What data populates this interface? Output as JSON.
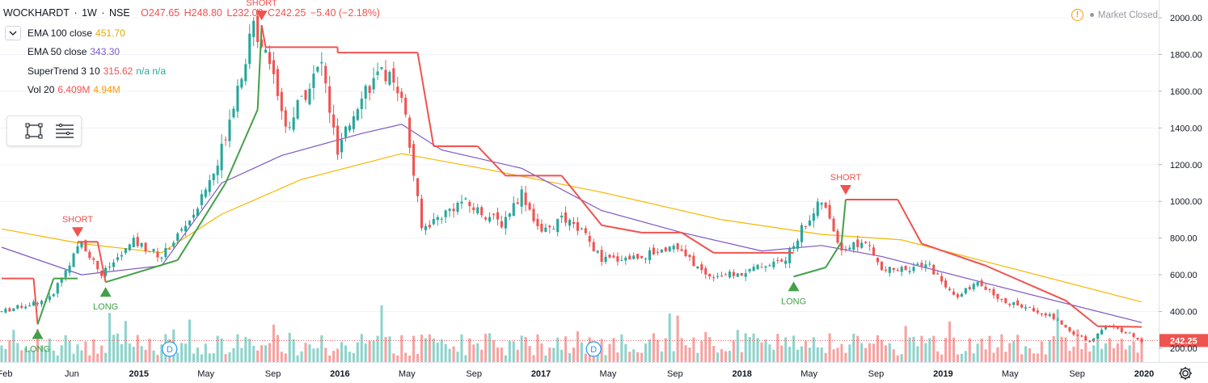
{
  "header": {
    "symbol": "WOCKHARDT",
    "sep1": "·",
    "interval": "1W",
    "sep2": "·",
    "exchange": "NSE",
    "open": "O247.65",
    "high": "H248.80",
    "low": "L232.00",
    "close": "C242.25",
    "change": "−5.40 (−2.18%)"
  },
  "status": {
    "market": "Market Closed",
    "warn_icon": "!"
  },
  "indicators": [
    {
      "label": "EMA 100 close",
      "value": "451.70",
      "color": "#f5b800"
    },
    {
      "label": "EMA 50 close",
      "value": "343.30",
      "color": "#7e57c2"
    },
    {
      "label": "SuperTrend 3 10",
      "value": "315.62",
      "extra": "n/a n/a",
      "color": "#f05350",
      "extra_color": "#26a69a"
    },
    {
      "label": "Vol 20",
      "value": "6.409M",
      "extra": "4.94M",
      "color": "#ef5350",
      "extra_color": "#ff9800"
    }
  ],
  "colors": {
    "up": "#26a69a",
    "down": "#ef5350",
    "vol_up": "#8fd3cb",
    "vol_down": "#f5a3a1",
    "ema100": "#f5b800",
    "ema50": "#7e57c2",
    "st_down": "#f05350",
    "st_up": "#43a047",
    "price_tag": "#ef5350"
  },
  "chart_data": {
    "type": "candlestick",
    "title": "WOCKHARDT · 1W · NSE",
    "ylim": [
      160,
      2050
    ],
    "y_ticks": [
      "200.00",
      "400.00",
      "600.00",
      "800.00",
      "1000.00",
      "1200.00",
      "1400.00",
      "1600.00",
      "1800.00",
      "2000.00"
    ],
    "x_ticks": [
      "Feb",
      "Jun",
      "2015",
      "May",
      "Sep",
      "2016",
      "May",
      "Sep",
      "2017",
      "May",
      "Sep",
      "2018",
      "May",
      "Sep",
      "2019",
      "May",
      "Sep",
      "2020"
    ],
    "last_price": "242.25",
    "price_path": [
      [
        0,
        400
      ],
      [
        12,
        470
      ],
      [
        20,
        780
      ],
      [
        25,
        600
      ],
      [
        33,
        780
      ],
      [
        40,
        700
      ],
      [
        48,
        930
      ],
      [
        54,
        1200
      ],
      [
        58,
        1550
      ],
      [
        63,
        1950
      ],
      [
        67,
        1800
      ],
      [
        71,
        1400
      ],
      [
        76,
        1600
      ],
      [
        80,
        1750
      ],
      [
        84,
        1250
      ],
      [
        90,
        1600
      ],
      [
        96,
        1700
      ],
      [
        100,
        1600
      ],
      [
        105,
        850
      ],
      [
        115,
        1000
      ],
      [
        125,
        880
      ],
      [
        130,
        1050
      ],
      [
        135,
        820
      ],
      [
        140,
        900
      ],
      [
        145,
        840
      ],
      [
        150,
        680
      ],
      [
        160,
        700
      ],
      [
        168,
        760
      ],
      [
        176,
        600
      ],
      [
        184,
        600
      ],
      [
        190,
        650
      ],
      [
        196,
        680
      ],
      [
        200,
        850
      ],
      [
        205,
        1000
      ],
      [
        210,
        740
      ],
      [
        216,
        780
      ],
      [
        220,
        620
      ],
      [
        232,
        650
      ],
      [
        238,
        480
      ],
      [
        244,
        550
      ],
      [
        250,
        460
      ],
      [
        256,
        420
      ],
      [
        262,
        380
      ],
      [
        268,
        280
      ],
      [
        272,
        240
      ],
      [
        276,
        320
      ],
      [
        281,
        290
      ],
      [
        285,
        242
      ]
    ],
    "ema50": [
      [
        0,
        750
      ],
      [
        20,
        600
      ],
      [
        40,
        650
      ],
      [
        55,
        1100
      ],
      [
        70,
        1250
      ],
      [
        90,
        1370
      ],
      [
        100,
        1420
      ],
      [
        110,
        1280
      ],
      [
        130,
        1180
      ],
      [
        150,
        950
      ],
      [
        170,
        830
      ],
      [
        190,
        730
      ],
      [
        205,
        760
      ],
      [
        220,
        700
      ],
      [
        245,
        560
      ],
      [
        285,
        340
      ]
    ],
    "ema100": [
      [
        0,
        850
      ],
      [
        20,
        770
      ],
      [
        40,
        720
      ],
      [
        55,
        930
      ],
      [
        75,
        1120
      ],
      [
        100,
        1260
      ],
      [
        120,
        1180
      ],
      [
        150,
        1050
      ],
      [
        180,
        900
      ],
      [
        205,
        820
      ],
      [
        225,
        790
      ],
      [
        250,
        650
      ],
      [
        285,
        452
      ]
    ],
    "supertrend": [
      [
        0,
        580,
        "down"
      ],
      [
        8,
        580,
        "down"
      ],
      [
        9,
        330,
        "up"
      ],
      [
        13,
        580,
        "up"
      ],
      [
        19,
        580,
        "up"
      ],
      [
        19,
        780,
        "down"
      ],
      [
        24,
        780,
        "down"
      ],
      [
        26,
        560,
        "up"
      ],
      [
        44,
        680,
        "up"
      ],
      [
        56,
        1100,
        "up"
      ],
      [
        64,
        1500,
        "up"
      ],
      [
        65,
        1960,
        "down"
      ],
      [
        66,
        1840,
        "down"
      ],
      [
        84,
        1840,
        "down"
      ],
      [
        84,
        1810,
        "down"
      ],
      [
        104,
        1810,
        "down"
      ],
      [
        108,
        1300,
        "down"
      ],
      [
        119,
        1300,
        "down"
      ],
      [
        126,
        1140,
        "down"
      ],
      [
        140,
        1140,
        "down"
      ],
      [
        150,
        870,
        "down"
      ],
      [
        160,
        830,
        "down"
      ],
      [
        170,
        830,
        "down"
      ],
      [
        178,
        720,
        "down"
      ],
      [
        198,
        720,
        "down"
      ],
      [
        198,
        590,
        "up"
      ],
      [
        206,
        640,
        "up"
      ],
      [
        210,
        780,
        "up"
      ],
      [
        211,
        1010,
        "down"
      ],
      [
        224,
        1010,
        "down"
      ],
      [
        230,
        770,
        "down"
      ],
      [
        246,
        650,
        "down"
      ],
      [
        266,
        460,
        "down"
      ],
      [
        274,
        320,
        "down"
      ],
      [
        285,
        316,
        "down"
      ]
    ],
    "signals": [
      {
        "label": "LONG",
        "type": "long",
        "bar": 9,
        "price": 330
      },
      {
        "label": "SHORT",
        "type": "short",
        "bar": 19,
        "price": 780
      },
      {
        "label": "LONG",
        "type": "long",
        "bar": 26,
        "price": 560
      },
      {
        "label": "SHORT",
        "type": "short",
        "bar": 65,
        "price": 1960
      },
      {
        "label": "LONG",
        "type": "long",
        "bar": 198,
        "price": 590
      },
      {
        "label": "SHORT",
        "type": "short",
        "bar": 211,
        "price": 1010
      }
    ],
    "dividend_markers": [
      {
        "label": "D",
        "bar": 42
      },
      {
        "label": "D",
        "bar": 148
      }
    ],
    "bars_total": 286
  }
}
